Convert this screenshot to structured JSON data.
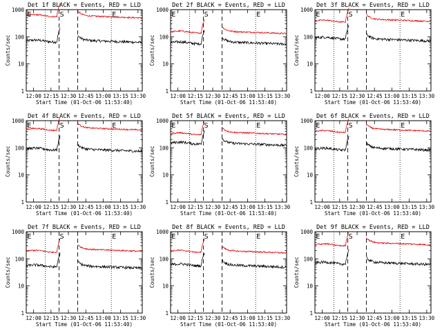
{
  "charts": [
    {
      "title": "Det 1f BLACK = Events, RED = LLD",
      "black_level": 75,
      "red_level": 600,
      "black_pre": 70,
      "red_pre": 600
    },
    {
      "title": "Det 2f BLACK = Events, RED = LLD",
      "black_level": 65,
      "red_level": 160,
      "black_pre": 60,
      "red_pre": 150
    },
    {
      "title": "Det 3f BLACK = Events, RED = LLD",
      "black_level": 85,
      "red_level": 450,
      "black_pre": 90,
      "red_pre": 380
    },
    {
      "title": "Det 4f BLACK = Events, RED = LLD",
      "black_level": 90,
      "red_level": 550,
      "black_pre": 90,
      "red_pre": 480
    },
    {
      "title": "Det 5f BLACK = Events, RED = LLD",
      "black_level": 150,
      "red_level": 380,
      "black_pre": 150,
      "red_pre": 330
    },
    {
      "title": "Det 6f BLACK = Events, RED = LLD",
      "black_level": 100,
      "red_level": 500,
      "black_pre": 90,
      "red_pre": 400
    },
    {
      "title": "Det 7f BLACK = Events, RED = LLD",
      "black_level": 55,
      "red_level": 230,
      "black_pre": 55,
      "red_pre": 190
    },
    {
      "title": "Det 8f BLACK = Events, RED = LLD",
      "black_level": 60,
      "red_level": 200,
      "black_pre": 60,
      "red_pre": 190
    },
    {
      "title": "Det 9f BLACK = Events, RED = LLD",
      "black_level": 75,
      "red_level": 400,
      "black_pre": 70,
      "red_pre": 330
    }
  ],
  "common": {
    "xlabel": "Start Time (01-Oct-06 11:53:40)",
    "ylabel": "Counts/sec",
    "x_ticks": [
      "12:00",
      "12:15",
      "12:30",
      "12:45",
      "13:00",
      "13:15",
      "13:30"
    ],
    "y_ticks": [
      "1",
      "10",
      "100",
      "1000"
    ],
    "markers": [
      "E",
      "S",
      "E"
    ],
    "colors": {
      "events": "#000000",
      "lld": "#dd0000"
    }
  },
  "chart_data": {
    "type": "line",
    "x_unit": "minutes after 11:53:40",
    "x_range": [
      "11:53:40",
      "13:33:40"
    ],
    "ylim": [
      1,
      1000
    ],
    "y_scale": "log",
    "series": [
      {
        "name": "BLACK = Events"
      },
      {
        "name": "RED = LLD"
      }
    ],
    "vlines_dotted": [
      "12:10",
      "13:07"
    ],
    "vlines_dashed": [
      "12:22",
      "12:38"
    ]
  }
}
